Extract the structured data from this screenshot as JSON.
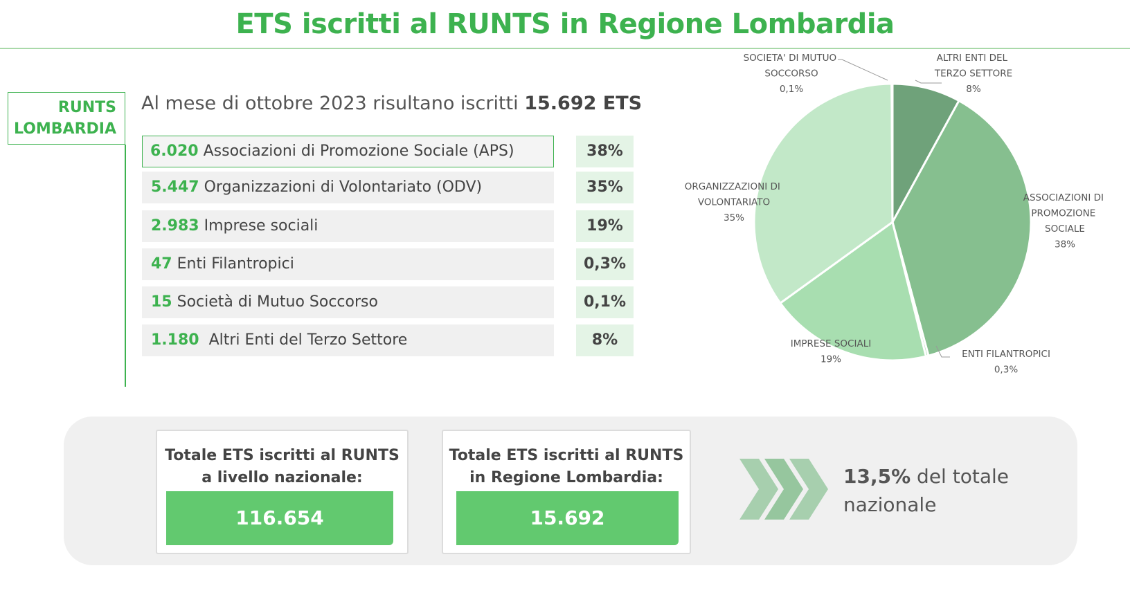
{
  "header": {
    "title": "ETS iscritti al RUNTS in Regione Lombardia"
  },
  "side_label": {
    "line1": "RUNTS",
    "line2": "LOMBARDIA"
  },
  "intro": {
    "text": "Al mese di ottobre 2023 risultano iscritti",
    "highlight": "15.692 ETS"
  },
  "table": {
    "rows": [
      [
        "6.020",
        "Associazioni di Promozione Sociale (APS)",
        "38%"
      ],
      [
        "5.447",
        "Organizzazioni di Volontariato (ODV)",
        "35%"
      ],
      [
        "2.983",
        "Imprese sociali",
        "19%"
      ],
      [
        "47",
        "Enti Filantropici",
        "0,3%"
      ],
      [
        "15",
        "Società di Mutuo Soccorso",
        "0,1%"
      ],
      [
        "1.180",
        "Altri Enti del Terzo Settore",
        "8%"
      ]
    ]
  },
  "totals": {
    "national": {
      "label": "Totale ETS iscritti al RUNTS a livello nazionale:",
      "value": "116.654"
    },
    "regional": {
      "label": "Totale ETS iscritti al RUNTS in Regione Lombardia:",
      "value": "15.692"
    },
    "share": {
      "highlight": "13,5%",
      "text": "del totale nazionale"
    }
  },
  "chart_data": {
    "type": "pie",
    "categories": [
      "ALTRI ENTI DEL TERZO SETTORE",
      "ASSOCIAZIONI DI PROMOZIONE SOCIALE",
      "ENTI FILANTROPICI",
      "IMPRESE SOCIALI",
      "ORGANIZZAZIONI DI VOLONTARIATO",
      "SOCIETA' DI MUTUO SOCCORSO"
    ],
    "values": [
      8,
      38,
      0.3,
      19,
      35,
      0.1
    ],
    "value_labels": [
      "8%",
      "38%",
      "0,3%",
      "19%",
      "35%",
      "0,1%"
    ],
    "colors": [
      "#6fa27a",
      "#86bf8f",
      "#9fd3a7",
      "#a8deb0",
      "#c2e8c8",
      "#b5e0bb"
    ]
  }
}
